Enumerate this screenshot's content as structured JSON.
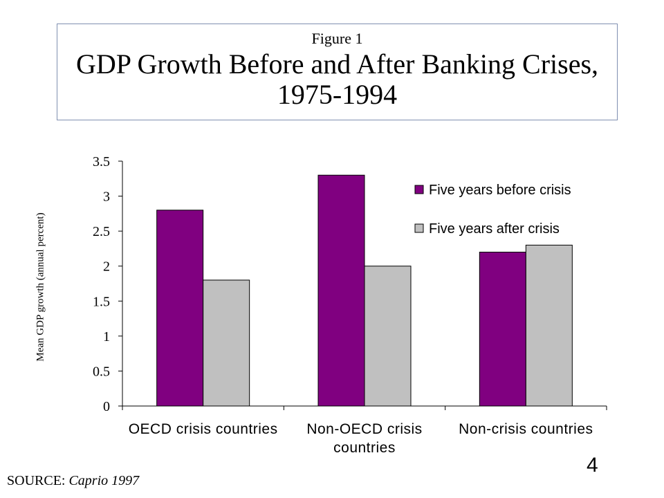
{
  "header": {
    "figure_label": "Figure 1",
    "title": "GDP Growth Before and After Banking Crises, 1975-1994"
  },
  "footer": {
    "source_label": "SOURCE:",
    "source_ref": "Caprio 1997",
    "page_number": "4"
  },
  "colors": {
    "before": "#800080",
    "after": "#c0c0c0",
    "title_border": "#7f8fb0"
  },
  "chart_data": {
    "type": "bar",
    "title": "GDP Growth Before and After Banking Crises, 1975-1994",
    "xlabel": "",
    "ylabel": "Mean GDP growth (annual percent)",
    "categories": [
      "OECD crisis countries",
      "Non-OECD crisis countries",
      "Non-crisis countries"
    ],
    "category_lines": [
      [
        "OECD crisis countries"
      ],
      [
        "Non-OECD crisis",
        "countries"
      ],
      [
        "Non-crisis countries"
      ]
    ],
    "series": [
      {
        "name": "Five years before crisis",
        "values": [
          2.8,
          3.3,
          2.2
        ]
      },
      {
        "name": "Five years after crisis",
        "values": [
          1.8,
          2.0,
          2.3
        ]
      }
    ],
    "ylim": [
      0,
      3.5
    ],
    "yticks": [
      "0",
      "0.5",
      "1",
      "1.5",
      "2",
      "2.5",
      "3",
      "3.5"
    ],
    "grid": false,
    "legend_position": "top-right"
  }
}
